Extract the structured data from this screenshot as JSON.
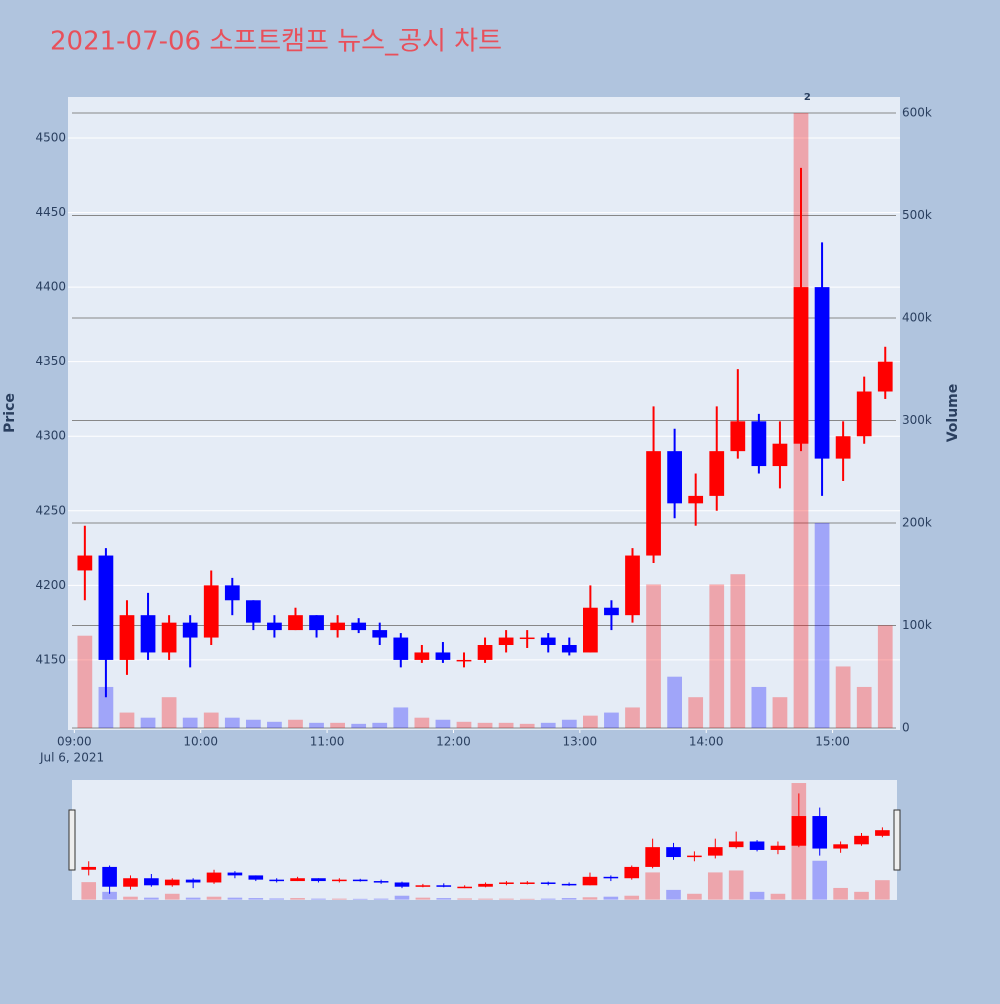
{
  "chart_data": {
    "type": "candlestick",
    "title": "2021-07-06 소프트캠프 뉴스_공시 차트",
    "y_label": "Price",
    "y2_label": "Volume",
    "x_sublabel": "Jul 6, 2021",
    "up_color": "#ff0000",
    "down_color": "#0000ff",
    "x": [
      "09:00",
      "09:10",
      "09:20",
      "09:30",
      "09:40",
      "09:50",
      "10:00",
      "10:10",
      "10:20",
      "10:30",
      "10:40",
      "10:50",
      "11:00",
      "11:10",
      "11:20",
      "11:30",
      "11:40",
      "11:50",
      "12:00",
      "12:10",
      "12:20",
      "12:30",
      "12:40",
      "12:50",
      "13:00",
      "13:10",
      "13:20",
      "13:30",
      "13:40",
      "13:50",
      "14:00",
      "14:10",
      "14:20",
      "14:30",
      "14:40",
      "14:50",
      "15:00",
      "15:10",
      "15:20"
    ],
    "open": [
      4210,
      4220,
      4150,
      4180,
      4155,
      4175,
      4165,
      4200,
      4190,
      4175,
      4170,
      4180,
      4170,
      4175,
      4170,
      4165,
      4150,
      4155,
      4150,
      4150,
      4160,
      4165,
      4165,
      4160,
      4155,
      4185,
      4180,
      4220,
      4290,
      4255,
      4260,
      4290,
      4310,
      4280,
      4295,
      4400,
      4285,
      4300,
      4330
    ],
    "high": [
      4240,
      4225,
      4190,
      4195,
      4180,
      4180,
      4210,
      4205,
      4190,
      4180,
      4185,
      4180,
      4180,
      4178,
      4175,
      4168,
      4160,
      4162,
      4155,
      4165,
      4170,
      4170,
      4168,
      4165,
      4200,
      4190,
      4225,
      4320,
      4305,
      4275,
      4320,
      4345,
      4315,
      4310,
      4480,
      4430,
      4310,
      4340,
      4360
    ],
    "low": [
      4190,
      4125,
      4140,
      4150,
      4150,
      4145,
      4160,
      4180,
      4170,
      4165,
      4170,
      4165,
      4165,
      4168,
      4160,
      4145,
      4148,
      4148,
      4145,
      4148,
      4155,
      4158,
      4155,
      4153,
      4155,
      4170,
      4175,
      4215,
      4245,
      4240,
      4250,
      4285,
      4275,
      4265,
      4290,
      4260,
      4270,
      4295,
      4325
    ],
    "close": [
      4220,
      4150,
      4180,
      4155,
      4175,
      4165,
      4200,
      4190,
      4175,
      4170,
      4180,
      4170,
      4175,
      4170,
      4165,
      4150,
      4155,
      4150,
      4150,
      4160,
      4165,
      4165,
      4160,
      4155,
      4185,
      4180,
      4220,
      4290,
      4255,
      4260,
      4290,
      4310,
      4280,
      4295,
      4400,
      4285,
      4300,
      4330,
      4350
    ],
    "volume": [
      90000,
      40000,
      15000,
      10000,
      30000,
      10000,
      15000,
      10000,
      8000,
      6000,
      8000,
      5000,
      5000,
      4000,
      5000,
      20000,
      10000,
      8000,
      6000,
      5000,
      5000,
      4000,
      5000,
      8000,
      12000,
      15000,
      20000,
      140000,
      50000,
      30000,
      140000,
      150000,
      40000,
      30000,
      600000,
      200000,
      60000,
      40000,
      100000
    ],
    "xlim": [
      "08:57",
      "15:32"
    ],
    "xticks": [
      "09:00",
      "10:00",
      "11:00",
      "12:00",
      "13:00",
      "14:00",
      "15:00"
    ],
    "ylim": [
      4103,
      4527.5
    ],
    "yticks": [
      4150,
      4200,
      4250,
      4300,
      4350,
      4400,
      4450,
      4500
    ],
    "y2lim": [
      -2000,
      615600
    ],
    "y2ticks": [
      {
        "value": 0,
        "label": "0"
      },
      {
        "value": 100000,
        "label": "100k"
      },
      {
        "value": 200000,
        "label": "200k"
      },
      {
        "value": 300000,
        "label": "300k"
      },
      {
        "value": 400000,
        "label": "400k"
      },
      {
        "value": 500000,
        "label": "500k"
      },
      {
        "value": 600000,
        "label": "600k"
      }
    ],
    "annotations": [
      {
        "x": "14:48",
        "text": "2"
      }
    ]
  }
}
